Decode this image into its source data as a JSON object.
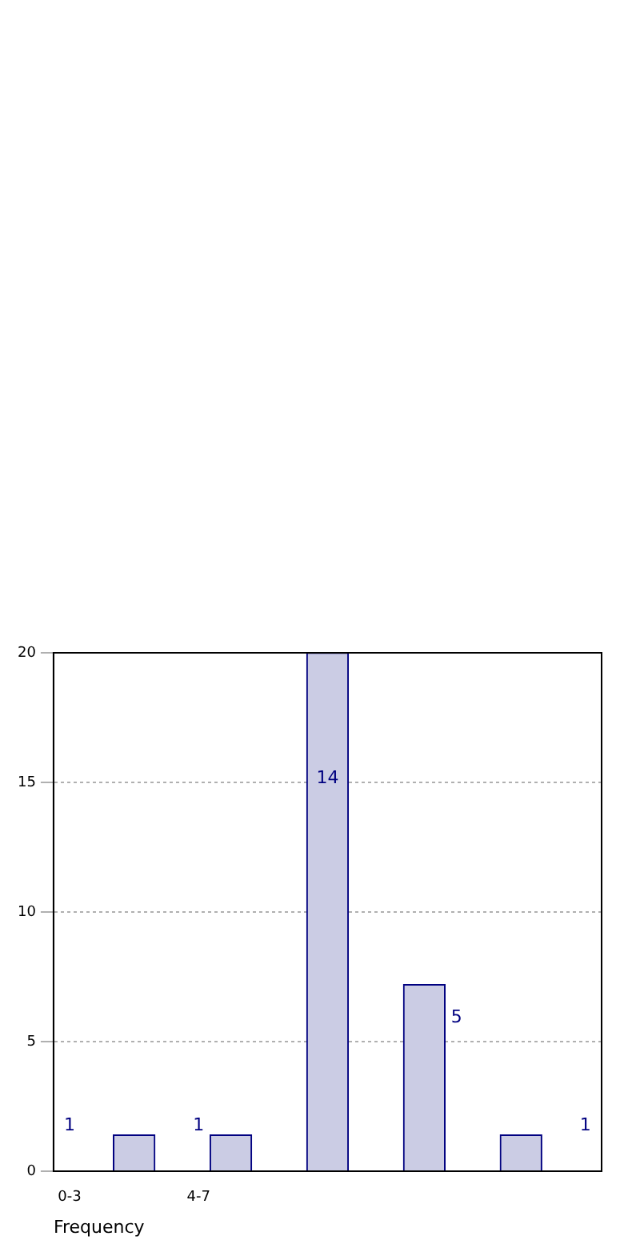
{
  "chart_data": {
    "type": "bar",
    "xlabel": "Frequency",
    "categories": [
      "0-3",
      null,
      null,
      null,
      "4-7",
      null,
      null,
      null,
      null,
      null,
      null,
      null,
      null,
      null,
      null,
      null,
      null
    ],
    "values": [
      null,
      null,
      1.4,
      null,
      null,
      1.4,
      null,
      null,
      20,
      null,
      null,
      7.2,
      null,
      null,
      1.4,
      null,
      null
    ],
    "color": "#cbcce4",
    "ylim": [
      0,
      20
    ],
    "yticks": [
      0,
      5,
      10,
      15,
      20
    ],
    "grid": "y",
    "annotations": [
      "1",
      "1",
      "14",
      "5",
      "1"
    ]
  }
}
